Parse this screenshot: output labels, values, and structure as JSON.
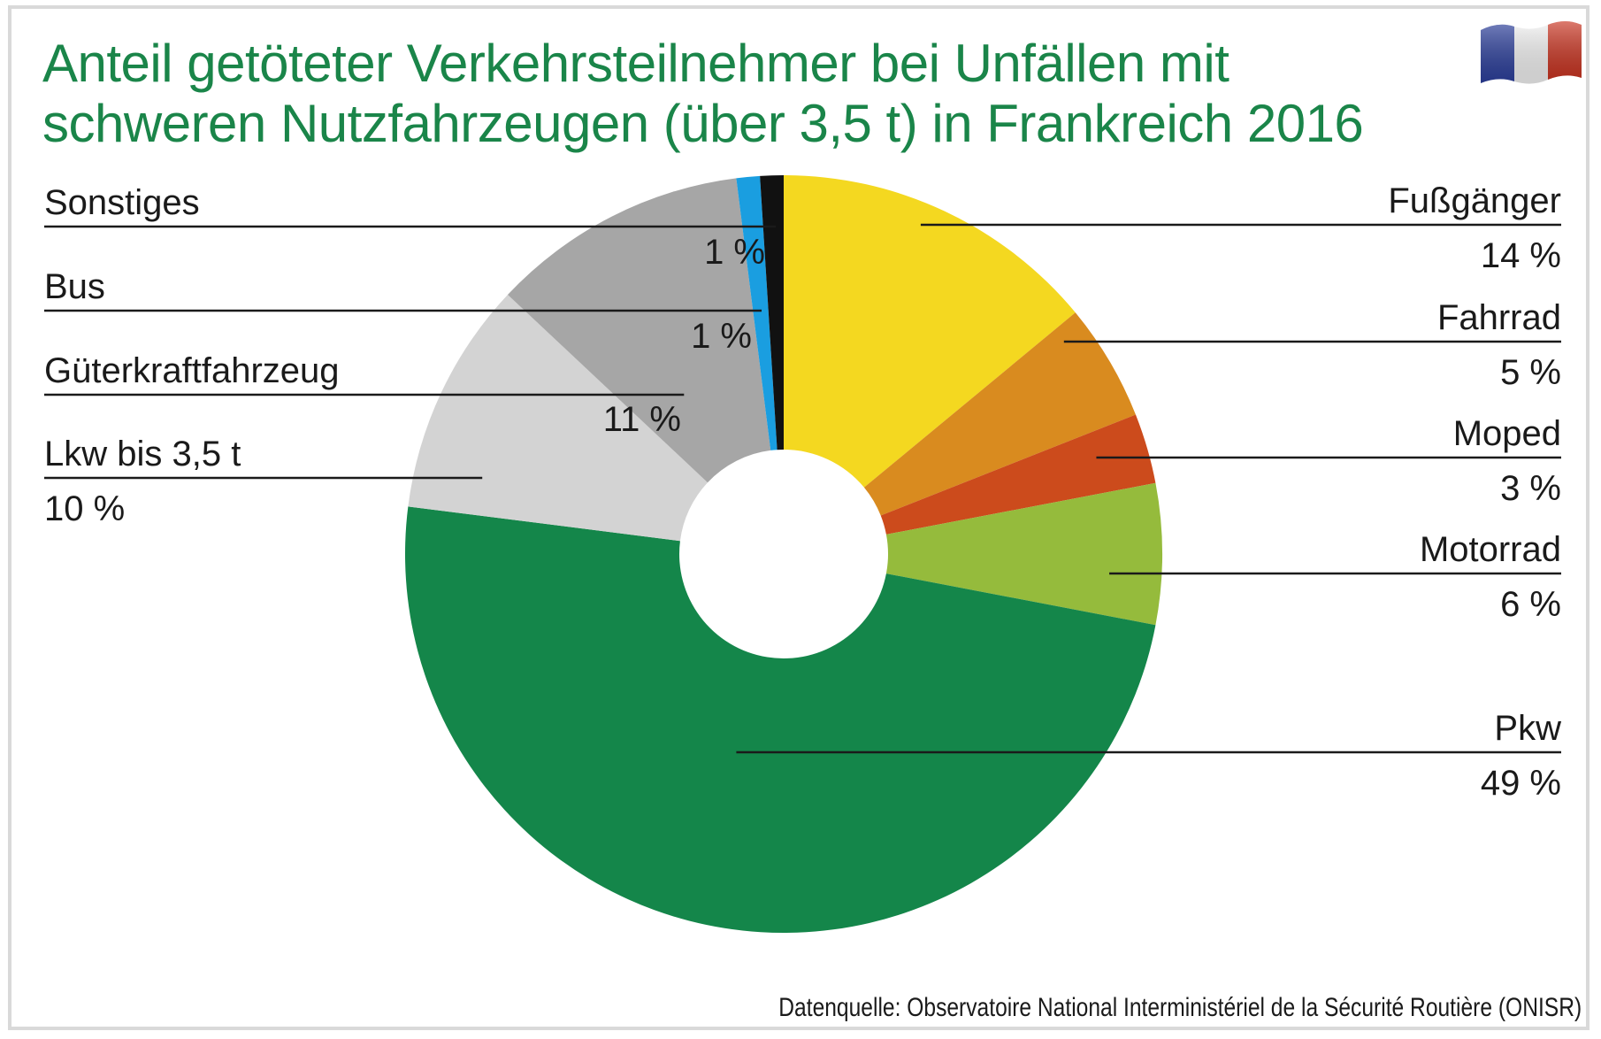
{
  "title_lines": [
    "Anteil getöteter Verkehrsteilnehmer bei Unfällen mit",
    "schweren Nutzfahrzeugen (über 3,5 t) in Frankreich 2016"
  ],
  "source": "Datenquelle: Observatoire National Interministériel de la Sécurité Routière (ONISR)",
  "flag_icon": "france-flag-icon",
  "chart_data": {
    "type": "pie",
    "title": "Anteil getöteter Verkehrsteilnehmer bei Unfällen mit schweren Nutzfahrzeugen (über 3,5 t) in Frankreich 2016",
    "unit": "%",
    "slices": [
      {
        "label": "Fußgänger",
        "value": 14,
        "value_label": "14 %",
        "color": "#f4d820"
      },
      {
        "label": "Fahrrad",
        "value": 5,
        "value_label": "5 %",
        "color": "#d98b1f"
      },
      {
        "label": "Moped",
        "value": 3,
        "value_label": "3 %",
        "color": "#cc4b1c"
      },
      {
        "label": "Motorrad",
        "value": 6,
        "value_label": "6 %",
        "color": "#95bb3c"
      },
      {
        "label": "Pkw",
        "value": 49,
        "value_label": "49 %",
        "color": "#14864a"
      },
      {
        "label": "Lkw bis 3,5 t",
        "value": 10,
        "value_label": "10 %",
        "color": "#d3d3d3"
      },
      {
        "label": "Güterkraftfahrzeug",
        "value": 11,
        "value_label": "11 %",
        "color": "#a6a6a6"
      },
      {
        "label": "Bus",
        "value": 1,
        "value_label": "1 %",
        "color": "#1a9ee0"
      },
      {
        "label": "Sonstiges",
        "value": 1,
        "value_label": "1 %",
        "color": "#111111"
      }
    ]
  }
}
